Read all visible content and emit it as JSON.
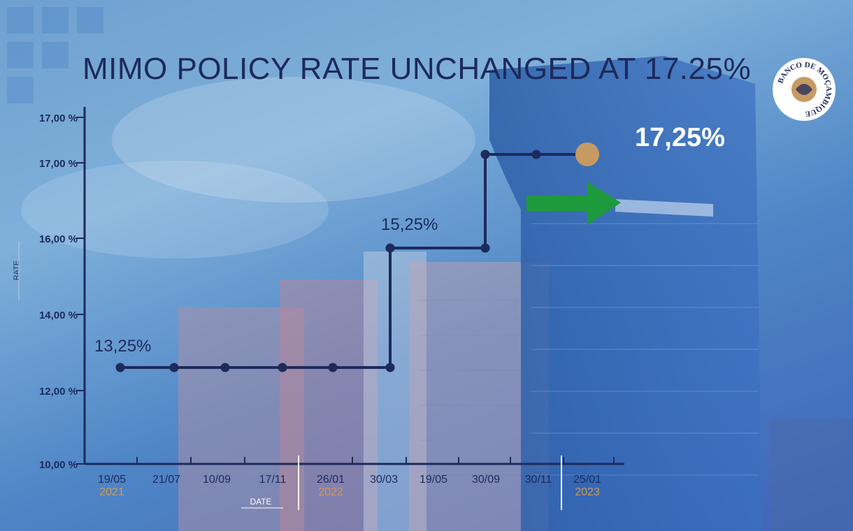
{
  "title": "MIMO POLICY RATE UNCHANGED AT 17.25%",
  "highlight_value": "17,25%",
  "logo_text": "BANCO DE MOÇAMBIQUE",
  "colors": {
    "line": "#1d2a5c",
    "final_marker": "#c79a63",
    "arrow": "#1e9a3c",
    "year": "#d09a57",
    "text": "#1d2a5c"
  },
  "icons": {
    "arrow": "green-right-arrow",
    "logo": "banco-de-mocambique-seal"
  },
  "chart_data": {
    "type": "line",
    "step": true,
    "xlabel": "DATE",
    "ylabel": "RATE",
    "y_ticks": [
      "10,00 %",
      "12,00 %",
      "14,00 %",
      "16,00 %",
      "17,00 %",
      "17,00 %"
    ],
    "x_ticks": [
      "19/05",
      "21/07",
      "10/09",
      "17/11",
      "26/01",
      "30/03",
      "19/05",
      "30/09",
      "30/11",
      "25/01"
    ],
    "years": [
      {
        "label": "2021",
        "at": "19/05"
      },
      {
        "label": "2022",
        "at": "26/01"
      },
      {
        "label": "2023",
        "at": "25/01"
      }
    ],
    "series": [
      {
        "points": [
          {
            "x": "19/05/2021",
            "y": 13.25
          },
          {
            "x": "21/07/2021",
            "y": 13.25
          },
          {
            "x": "10/09/2021",
            "y": 13.25
          },
          {
            "x": "17/11/2021",
            "y": 13.25
          },
          {
            "x": "26/01/2022",
            "y": 13.25
          },
          {
            "x": "30/03/2022",
            "y": 13.25
          },
          {
            "x": "30/03/2022",
            "y": 15.25
          },
          {
            "x": "30/09/2022",
            "y": 15.25
          },
          {
            "x": "30/09/2022",
            "y": 17.25
          },
          {
            "x": "30/11/2022",
            "y": 17.25
          },
          {
            "x": "25/01/2023",
            "y": 17.25
          }
        ]
      }
    ],
    "annotations": [
      {
        "text": "13,25%",
        "near": "19/05/2021"
      },
      {
        "text": "15,25%",
        "near": "30/03/2022"
      }
    ]
  }
}
